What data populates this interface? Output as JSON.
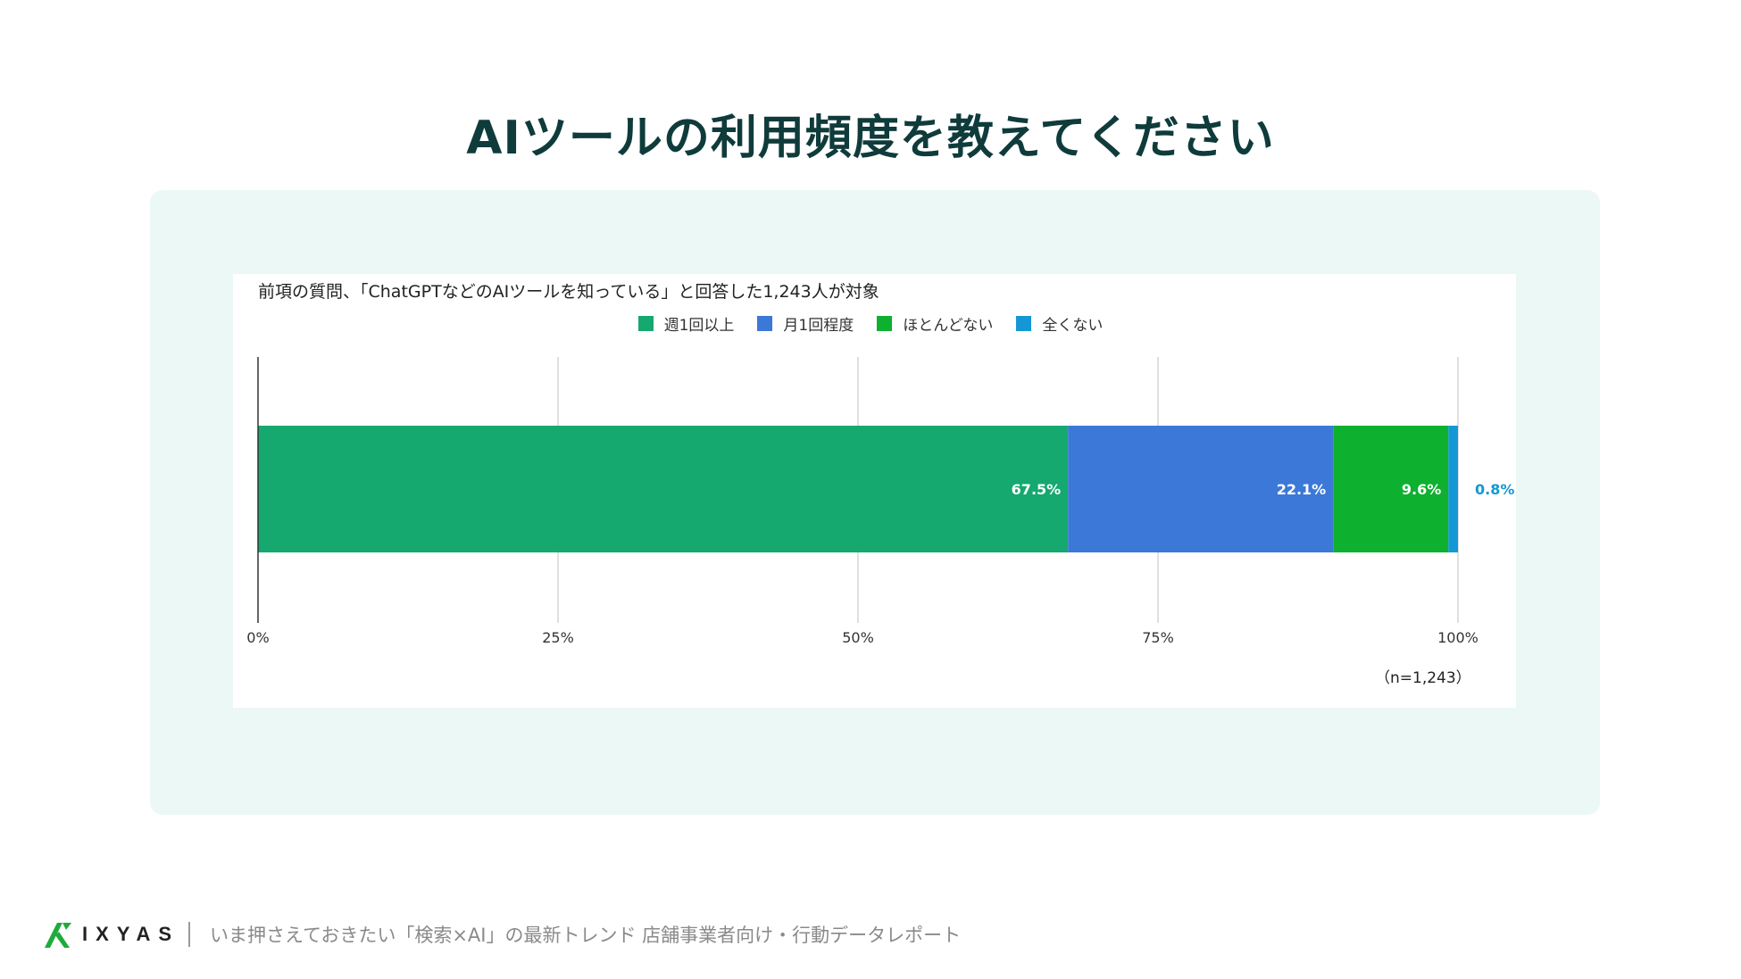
{
  "page": {
    "title": "AIツールの利用頻度を教えてください"
  },
  "chart_data": {
    "type": "bar",
    "orientation": "horizontal",
    "stacked": true,
    "normalized": true,
    "subtitle": "前項の質問、「ChatGPTなどのAIツールを知っている」と回答した1,243人が対象",
    "categories": [
      ""
    ],
    "series": [
      {
        "name": "週1回以上",
        "values": [
          67.5
        ],
        "label": "67.5%",
        "color": "#15a86f",
        "label_color": "#ffffff"
      },
      {
        "name": "月1回程度",
        "values": [
          22.1
        ],
        "label": "22.1%",
        "color": "#3c78d8",
        "label_color": "#ffffff"
      },
      {
        "name": "ほとんどない",
        "values": [
          9.6
        ],
        "label": "9.6%",
        "color": "#0eb02f",
        "label_color": "#ffffff"
      },
      {
        "name": "全くない",
        "values": [
          0.8
        ],
        "label": "0.8%",
        "color": "#1498d5",
        "label_color": "#1498d5"
      }
    ],
    "xlim": [
      0,
      100
    ],
    "xticks": [
      0,
      25,
      50,
      75,
      100
    ],
    "xtick_labels": [
      "0%",
      "25%",
      "50%",
      "75%",
      "100%"
    ],
    "grid": true,
    "legend_position": "top",
    "note": "（n=1,243）"
  },
  "footer": {
    "brand": "IXYAS",
    "text": "いま押さえておきたい「検索×AI」の最新トレンド 店舗事業者向け・行動データレポート"
  },
  "colors": {
    "title": "#0f3b3b",
    "panel_bg": "#ecf8f6",
    "brand_green": "#1faa3c"
  }
}
